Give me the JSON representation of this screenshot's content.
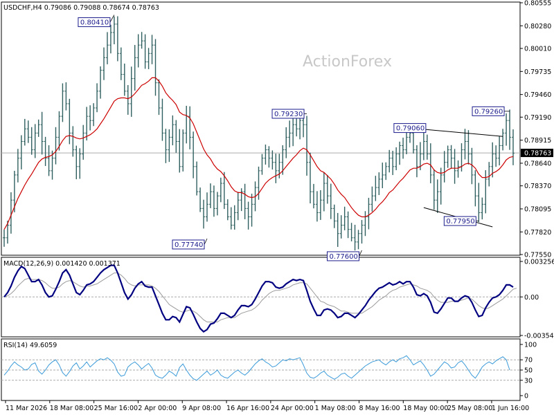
{
  "header": {
    "main": "USDCHF,H4  0.79086 0.79088 0.78674 0.78763",
    "macd": "MACD(12,26,9) 0.001420 0.001371",
    "rsi": "RSI(14) 49.6059"
  },
  "watermark": "ActionForex",
  "colors": {
    "candle": "#2f5f5f",
    "ma": "#cc0000",
    "macd": "#000080",
    "signal": "#9a9a9a",
    "rsi": "#3a9ad9",
    "label_border": "#1a1a8c",
    "level": "#aaaaaa"
  },
  "chart_data": [
    {
      "type": "line",
      "panel": "price",
      "symbol": "USDCHF",
      "timeframe": "H4",
      "x_tick_labels": [
        "11 Mar 2026",
        "18 Mar 08:00",
        "25 Mar 16:00",
        "2 Apr 00:00",
        "9 Apr 08:00",
        "16 Apr 16:00",
        "24 Apr 00:00",
        "1 May 08:00",
        "8 May 16:00",
        "18 May 00:00",
        "25 May 08:00",
        "1 Jun 16:00"
      ],
      "y_tick_labels": [
        "0.80555",
        "0.80280",
        "0.80010",
        "0.79735",
        "0.79460",
        "0.79190",
        "0.78915",
        "0.78640",
        "0.78370",
        "0.78095",
        "0.77820",
        "0.77550"
      ],
      "ylim": [
        0.7755,
        0.80555
      ],
      "current_price": 0.78763,
      "current_price_label": "0.78763",
      "series": [
        {
          "values": [
            0.7775,
            0.779,
            0.782,
            0.785,
            0.787,
            0.789,
            0.7905,
            0.7895,
            0.788,
            0.79,
            0.791,
            0.789,
            0.787,
            0.7855,
            0.787,
            0.7895,
            0.792,
            0.795,
            0.7935,
            0.79,
            0.788,
            0.786,
            0.7875,
            0.79,
            0.792,
            0.7915,
            0.793,
            0.795,
            0.7975,
            0.799,
            0.8005,
            0.802,
            0.803,
            0.7995,
            0.797,
            0.795,
            0.7935,
            0.7965,
            0.799,
            0.8005,
            0.801,
            0.7985,
            0.7995,
            0.8005,
            0.796,
            0.793,
            0.79,
            0.788,
            0.7895,
            0.791,
            0.789,
            0.786,
            0.79,
            0.792,
            0.7895,
            0.786,
            0.783,
            0.781,
            0.78,
            0.7815,
            0.783,
            0.781,
            0.7825,
            0.784,
            0.7815,
            0.78,
            0.779,
            0.7805,
            0.782,
            0.783,
            0.781,
            0.78,
            0.7815,
            0.7835,
            0.7855,
            0.787,
            0.788,
            0.787,
            0.7865,
            0.7855,
            0.7865,
            0.788,
            0.7895,
            0.79,
            0.791,
            0.7905,
            0.7915,
            0.791,
            0.7865,
            0.783,
            0.7815,
            0.7805,
            0.782,
            0.784,
            0.7825,
            0.781,
            0.7795,
            0.778,
            0.779,
            0.78,
            0.7785,
            0.7775,
            0.777,
            0.778,
            0.779,
            0.78,
            0.7815,
            0.7825,
            0.7835,
            0.7845,
            0.785,
            0.786,
            0.787,
            0.786,
            0.7875,
            0.7885,
            0.788,
            0.7895,
            0.79,
            0.788,
            0.786,
            0.7875,
            0.789,
            0.7875,
            0.785,
            0.782,
            0.783,
            0.785,
            0.7865,
            0.788,
            0.787,
            0.7855,
            0.786,
            0.788,
            0.789,
            0.7875,
            0.785,
            0.7825,
            0.7805,
            0.7815,
            0.7845,
            0.786,
            0.7875,
            0.787,
            0.7885,
            0.79,
            0.7915,
            0.7895,
            0.7876
          ]
        },
        {
          "values": [
            0.7785,
            0.7792,
            0.7802,
            0.7812,
            0.7822,
            0.783,
            0.7838,
            0.7845,
            0.7851,
            0.7858,
            0.7865,
            0.7869,
            0.7871,
            0.7872,
            0.7874,
            0.7878,
            0.7884,
            0.7891,
            0.7896,
            0.7897,
            0.7896,
            0.7894,
            0.7893,
            0.7894,
            0.7896,
            0.7898,
            0.7901,
            0.7905,
            0.7911,
            0.7917,
            0.7924,
            0.7931,
            0.7938,
            0.7941,
            0.7942,
            0.7942,
            0.7941,
            0.7943,
            0.7947,
            0.7952,
            0.7957,
            0.7959,
            0.7962,
            0.7966,
            0.7966,
            0.7962,
            0.7956,
            0.7948,
            0.7943,
            0.7939,
            0.7934,
            0.7925,
            0.7922,
            0.7921,
            0.7918,
            0.7911,
            0.7901,
            0.7891,
            0.7881,
            0.7874,
            0.7869,
            0.7862,
            0.7857,
            0.7854,
            0.7849,
            0.7843,
            0.7836,
            0.7831,
            0.7829,
            0.7829,
            0.7827,
            0.7824,
            0.7823,
            0.7824,
            0.7828,
            0.7834,
            0.784,
            0.7844,
            0.7847,
            0.7849,
            0.7851,
            0.7855,
            0.786,
            0.7865,
            0.787,
            0.7874,
            0.7879,
            0.7882,
            0.788,
            0.7874,
            0.7867,
            0.786,
            0.7855,
            0.7853,
            0.7849,
            0.7845,
            0.7839,
            0.7832,
            0.7827,
            0.7823,
            0.7817,
            0.7811,
            0.7806,
            0.7802,
            0.78,
            0.78,
            0.7802,
            0.7805,
            0.7809,
            0.7814,
            0.7818,
            0.7823,
            0.7829,
            0.7832,
            0.7837,
            0.7842,
            0.7846,
            0.7851,
            0.7856,
            0.7858,
            0.7858,
            0.786,
            0.7863,
            0.7864,
            0.7862,
            0.7856,
            0.7853,
            0.7852,
            0.7853,
            0.7856,
            0.7858,
            0.7858,
            0.7858,
            0.786,
            0.7863,
            0.7864,
            0.7862,
            0.7858,
            0.7851,
            0.7847,
            0.7847,
            0.7848,
            0.7852,
            0.7854,
            0.7857,
            0.7862,
            0.7868,
            0.7871,
            0.7872
          ]
        }
      ],
      "annotations": [
        {
          "text": "0.80410",
          "x_index": 32,
          "y": 0.8041
        },
        {
          "text": "0.77740",
          "x_index": 59,
          "y": 0.7774
        },
        {
          "text": "0.79230",
          "x_index": 88,
          "y": 0.7923
        },
        {
          "text": "0.77600",
          "x_index": 104,
          "y": 0.776
        },
        {
          "text": "0.79060",
          "x_index": 122,
          "y": 0.7906
        },
        {
          "text": "0.77950",
          "x_index": 138,
          "y": 0.7795
        },
        {
          "text": "0.79260",
          "x_index": 147,
          "y": 0.7926
        }
      ],
      "trendlines": [
        {
          "from": [
            118,
            0.7906
          ],
          "to": [
            145,
            0.7896
          ]
        },
        {
          "from": [
            122,
            0.7811
          ],
          "to": [
            142,
            0.7788
          ]
        }
      ]
    },
    {
      "type": "line",
      "panel": "macd",
      "y_tick_labels": [
        "0.003256",
        "0.00",
        "-0.00354"
      ],
      "ylim": [
        -0.00354,
        0.003256
      ],
      "zero_line": 0.0,
      "series": [
        {
          "values": [
            0.0,
            0.0004,
            0.001,
            0.0018,
            0.0024,
            0.0028,
            0.0026,
            0.002,
            0.0014,
            0.0014,
            0.0016,
            0.0011,
            0.0004,
            0.0,
            0.0001,
            0.0007,
            0.0014,
            0.0022,
            0.0025,
            0.002,
            0.0012,
            0.0004,
            0.0002,
            0.0006,
            0.0011,
            0.0012,
            0.0014,
            0.0018,
            0.0022,
            0.0025,
            0.0027,
            0.0029,
            0.0029,
            0.0022,
            0.0013,
            0.0004,
            -0.0002,
            0.0002,
            0.0008,
            0.0012,
            0.0014,
            0.001,
            0.0009,
            0.0009,
            0.0001,
            -0.0007,
            -0.0015,
            -0.0021,
            -0.0021,
            -0.0018,
            -0.0019,
            -0.0023,
            -0.0016,
            -0.0009,
            -0.001,
            -0.0016,
            -0.0023,
            -0.0029,
            -0.0032,
            -0.003,
            -0.0025,
            -0.0024,
            -0.002,
            -0.0015,
            -0.0015,
            -0.0017,
            -0.0019,
            -0.0017,
            -0.0012,
            -0.0008,
            -0.0008,
            -0.0009,
            -0.0007,
            -0.0002,
            0.0004,
            0.001,
            0.0014,
            0.0014,
            0.0013,
            0.0009,
            0.0008,
            0.0009,
            0.0012,
            0.0014,
            0.0016,
            0.0015,
            0.0016,
            0.0015,
            0.0006,
            -0.0004,
            -0.0011,
            -0.0017,
            -0.0017,
            -0.0012,
            -0.0011,
            -0.0012,
            -0.0015,
            -0.0019,
            -0.0018,
            -0.0015,
            -0.0015,
            -0.0017,
            -0.0019,
            -0.0016,
            -0.0012,
            -0.0008,
            -0.0003,
            0.0001,
            0.0005,
            0.0008,
            0.0009,
            0.0011,
            0.0013,
            0.0011,
            0.0012,
            0.0014,
            0.0012,
            0.0014,
            0.0014,
            0.0009,
            0.0002,
            0.0001,
            0.0003,
            0.0001,
            -0.0005,
            -0.0014,
            -0.0015,
            -0.0011,
            -0.0006,
            -0.0001,
            -0.0001,
            -0.0004,
            -0.0004,
            -0.0001,
            0.0001,
            0.0,
            -0.0005,
            -0.0012,
            -0.0018,
            -0.0017,
            -0.001,
            -0.0005,
            -0.0001,
            0.0,
            0.0002,
            0.0006,
            0.0011,
            0.0011,
            0.0009
          ]
        },
        {
          "values": [
            0.0,
            0.0001,
            0.0003,
            0.0006,
            0.001,
            0.0013,
            0.0016,
            0.0017,
            0.0016,
            0.0016,
            0.0016,
            0.0015,
            0.0013,
            0.001,
            0.0008,
            0.0008,
            0.0009,
            0.0012,
            0.0014,
            0.0015,
            0.0014,
            0.0012,
            0.001,
            0.0009,
            0.001,
            0.001,
            0.0011,
            0.0012,
            0.0014,
            0.0016,
            0.0018,
            0.002,
            0.0022,
            0.0022,
            0.002,
            0.0017,
            0.0013,
            0.0011,
            0.001,
            0.0011,
            0.0011,
            0.0011,
            0.0011,
            0.001,
            0.0008,
            0.0005,
            0.0001,
            -0.0003,
            -0.0007,
            -0.0009,
            -0.0011,
            -0.0013,
            -0.0014,
            -0.0013,
            -0.0012,
            -0.0013,
            -0.0015,
            -0.0018,
            -0.0021,
            -0.0023,
            -0.0023,
            -0.0023,
            -0.0023,
            -0.0021,
            -0.002,
            -0.0019,
            -0.0019,
            -0.0019,
            -0.0017,
            -0.0015,
            -0.0014,
            -0.0013,
            -0.0012,
            -0.001,
            -0.0007,
            -0.0003,
            0.0,
            0.0003,
            0.0005,
            0.0006,
            0.0006,
            0.0007,
            0.0008,
            0.0009,
            0.0011,
            0.0012,
            0.0013,
            0.0013,
            0.0012,
            0.0008,
            0.0004,
            0.0,
            -0.0004,
            -0.0005,
            -0.0007,
            -0.0008,
            -0.0009,
            -0.0011,
            -0.0013,
            -0.0013,
            -0.0014,
            -0.0015,
            -0.0015,
            -0.0015,
            -0.0015,
            -0.0013,
            -0.0011,
            -0.0009,
            -0.0006,
            -0.0003,
            -0.0001,
            0.0001,
            0.0004,
            0.0006,
            0.0007,
            0.0009,
            0.001,
            0.0011,
            0.0012,
            0.0011,
            0.001,
            0.0008,
            0.0007,
            0.0006,
            0.0004,
            0.0,
            -0.0003,
            -0.0005,
            -0.0005,
            -0.0005,
            -0.0004,
            -0.0004,
            -0.0004,
            -0.0003,
            -0.0002,
            -0.0001,
            -0.0002,
            -0.0005,
            -0.0008,
            -0.001,
            -0.0011,
            -0.001,
            -0.0008,
            -0.0006,
            -0.0004,
            -0.0002,
            0.0001,
            0.0004,
            0.0007,
            0.0008
          ]
        }
      ]
    },
    {
      "type": "line",
      "panel": "rsi",
      "y_tick_labels": [
        "100",
        "70",
        "50",
        "30",
        "0"
      ],
      "ylim": [
        0,
        100
      ],
      "levels": [
        70,
        50,
        30
      ],
      "series": [
        {
          "values": [
            40,
            48,
            58,
            66,
            60,
            56,
            50,
            52,
            61,
            64,
            48,
            42,
            50,
            60,
            66,
            70,
            60,
            45,
            38,
            47,
            58,
            64,
            52,
            58,
            66,
            56,
            62,
            68,
            72,
            70,
            74,
            69,
            62,
            46,
            38,
            40,
            56,
            62,
            66,
            60,
            52,
            58,
            63,
            54,
            40,
            36,
            34,
            40,
            48,
            44,
            38,
            55,
            62,
            50,
            40,
            33,
            30,
            36,
            42,
            48,
            40,
            44,
            50,
            40,
            36,
            34,
            40,
            46,
            50,
            44,
            40,
            46,
            54,
            62,
            68,
            72,
            66,
            62,
            56,
            58,
            64,
            70,
            68,
            72,
            70,
            72,
            74,
            60,
            44,
            36,
            34,
            38,
            44,
            48,
            40,
            36,
            32,
            36,
            42,
            44,
            38,
            34,
            40,
            46,
            52,
            58,
            62,
            66,
            68,
            70,
            64,
            60,
            66,
            70,
            66,
            72,
            74,
            78,
            70,
            60,
            64,
            68,
            60,
            50,
            38,
            42,
            50,
            58,
            66,
            62,
            54,
            56,
            64,
            68,
            60,
            50,
            40,
            34,
            44,
            56,
            62,
            66,
            62,
            68,
            72,
            76,
            70,
            50
          ]
        }
      ]
    }
  ]
}
